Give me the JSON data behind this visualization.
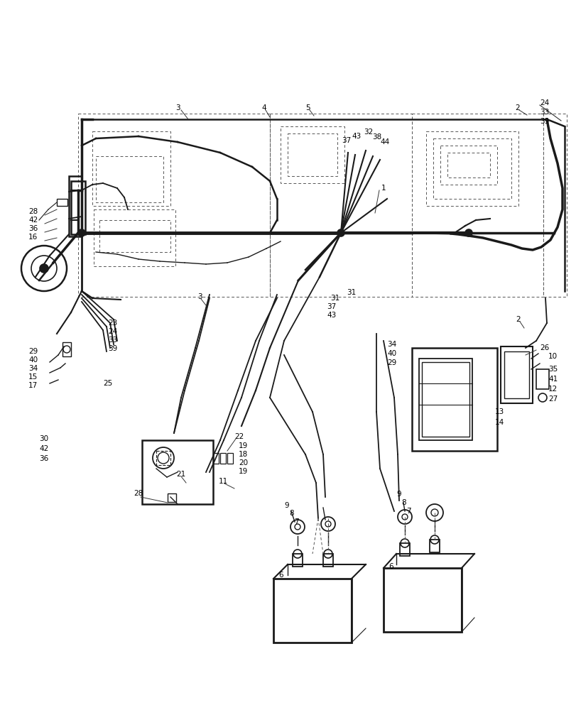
{
  "bg_color": "#ffffff",
  "lc": "#1a1a1a",
  "dc": "#555555",
  "figsize": [
    8.12,
    10.0
  ],
  "dpi": 100,
  "xlim": [
    0,
    812
  ],
  "ylim": [
    0,
    1000
  ]
}
